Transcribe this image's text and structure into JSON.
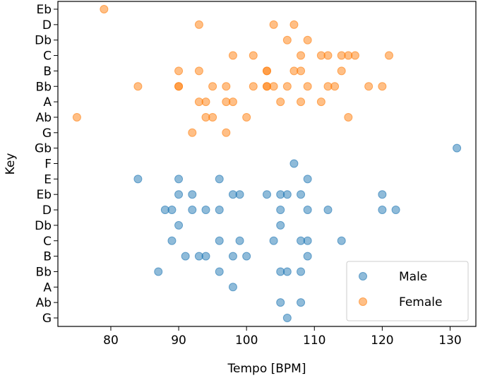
{
  "chart_data": {
    "type": "scatter",
    "title": "",
    "xlabel": "Tempo [BPM]",
    "ylabel": "Key",
    "xlim": [
      72.2,
      133.8
    ],
    "xticks": [
      80,
      90,
      100,
      110,
      120,
      130
    ],
    "categories": [
      "G",
      "Ab",
      "A",
      "Bb",
      "B",
      "C",
      "Db",
      "D",
      "Eb",
      "E",
      "F",
      "Gb",
      "G",
      "Ab",
      "A",
      "Bb",
      "B",
      "C",
      "Db",
      "D",
      "Eb"
    ],
    "grid": false,
    "legend_position": "bottom-right",
    "series": [
      {
        "name": "Male",
        "color": "#1f77b4",
        "points": [
          [
            106,
            0
          ],
          [
            105,
            1
          ],
          [
            108,
            1
          ],
          [
            98,
            2
          ],
          [
            87,
            3
          ],
          [
            96,
            3
          ],
          [
            105,
            3
          ],
          [
            106,
            3
          ],
          [
            108,
            3
          ],
          [
            91,
            4
          ],
          [
            93,
            4
          ],
          [
            94,
            4
          ],
          [
            98,
            4
          ],
          [
            100,
            4
          ],
          [
            109,
            4
          ],
          [
            89,
            5
          ],
          [
            96,
            5
          ],
          [
            99,
            5
          ],
          [
            104,
            5
          ],
          [
            108,
            5
          ],
          [
            109,
            5
          ],
          [
            114,
            5
          ],
          [
            90,
            6
          ],
          [
            105,
            6
          ],
          [
            88,
            7
          ],
          [
            89,
            7
          ],
          [
            92,
            7
          ],
          [
            94,
            7
          ],
          [
            96,
            7
          ],
          [
            105,
            7
          ],
          [
            109,
            7
          ],
          [
            112,
            7
          ],
          [
            120,
            7
          ],
          [
            122,
            7
          ],
          [
            90,
            8
          ],
          [
            92,
            8
          ],
          [
            98,
            8
          ],
          [
            99,
            8
          ],
          [
            103,
            8
          ],
          [
            105,
            8
          ],
          [
            106,
            8
          ],
          [
            108,
            8
          ],
          [
            120,
            8
          ],
          [
            84,
            9
          ],
          [
            90,
            9
          ],
          [
            96,
            9
          ],
          [
            109,
            9
          ],
          [
            107,
            10
          ],
          [
            131,
            11
          ]
        ]
      },
      {
        "name": "Female",
        "color": "#ff7f0e",
        "points": [
          [
            92,
            12
          ],
          [
            97,
            12
          ],
          [
            75,
            13
          ],
          [
            94,
            13
          ],
          [
            95,
            13
          ],
          [
            100,
            13
          ],
          [
            115,
            13
          ],
          [
            93,
            14
          ],
          [
            94,
            14
          ],
          [
            97,
            14
          ],
          [
            98,
            14
          ],
          [
            105,
            14
          ],
          [
            108,
            14
          ],
          [
            111,
            14
          ],
          [
            84,
            15
          ],
          [
            90,
            15
          ],
          [
            90,
            15
          ],
          [
            95,
            15
          ],
          [
            97,
            15
          ],
          [
            101,
            15
          ],
          [
            103,
            15
          ],
          [
            103,
            15
          ],
          [
            104,
            15
          ],
          [
            106,
            15
          ],
          [
            109,
            15
          ],
          [
            112,
            15
          ],
          [
            113,
            15
          ],
          [
            118,
            15
          ],
          [
            120,
            15
          ],
          [
            90,
            16
          ],
          [
            93,
            16
          ],
          [
            103,
            16
          ],
          [
            103,
            16
          ],
          [
            107,
            16
          ],
          [
            108,
            16
          ],
          [
            114,
            16
          ],
          [
            98,
            17
          ],
          [
            101,
            17
          ],
          [
            108,
            17
          ],
          [
            111,
            17
          ],
          [
            112,
            17
          ],
          [
            114,
            17
          ],
          [
            115,
            17
          ],
          [
            116,
            17
          ],
          [
            121,
            17
          ],
          [
            106,
            18
          ],
          [
            109,
            18
          ],
          [
            93,
            19
          ],
          [
            104,
            19
          ],
          [
            107,
            19
          ],
          [
            79,
            20
          ]
        ]
      }
    ]
  }
}
